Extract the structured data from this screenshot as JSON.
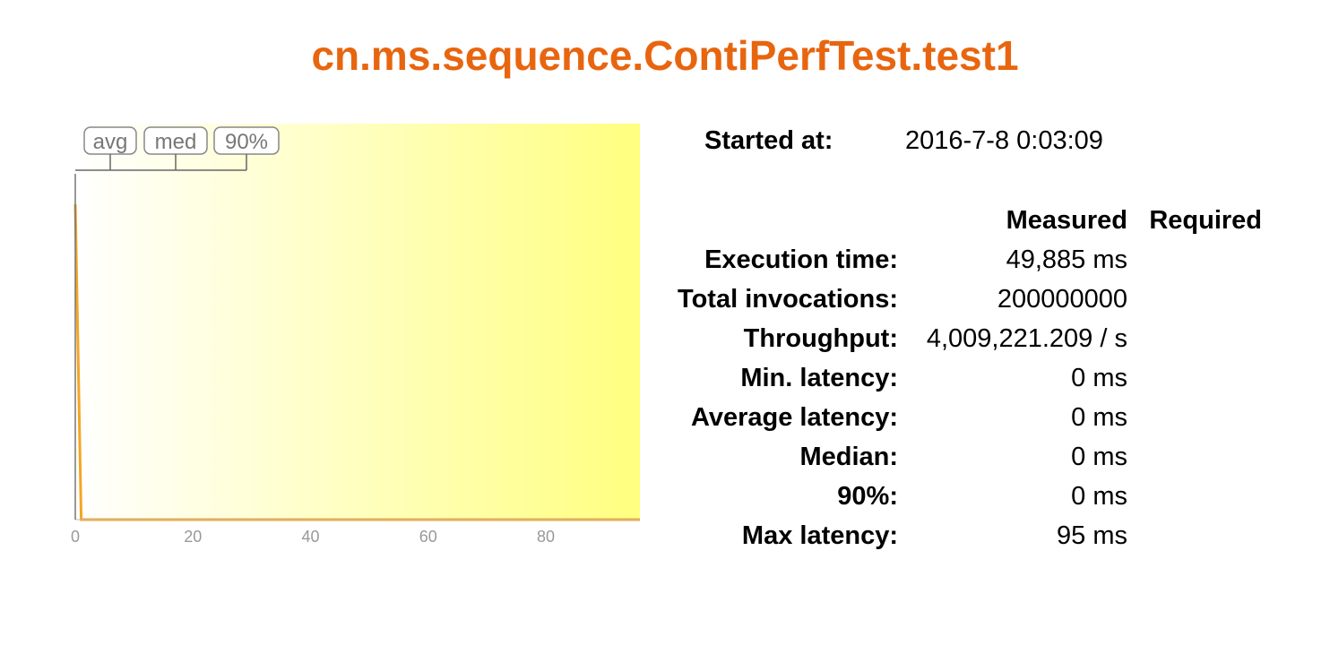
{
  "report": {
    "title": "cn.ms.sequence.ContiPerfTest.test1",
    "started_label": "Started at:",
    "started_value": "2016-7-8 0:03:09"
  },
  "table": {
    "headers": {
      "measured": "Measured",
      "required": "Required"
    },
    "rows": [
      {
        "label": "Execution time:",
        "measured": "49,885 ms",
        "required": ""
      },
      {
        "label": "Total invocations:",
        "measured": "200000000",
        "required": ""
      },
      {
        "label": "Throughput:",
        "measured": "4,009,221.209 / s",
        "required": ""
      },
      {
        "label": "Min. latency:",
        "measured": "0 ms",
        "required": ""
      },
      {
        "label": "Average latency:",
        "measured": "0 ms",
        "required": ""
      },
      {
        "label": "Median:",
        "measured": "0 ms",
        "required": ""
      },
      {
        "label": "90%:",
        "measured": "0 ms",
        "required": ""
      },
      {
        "label": "Max latency:",
        "measured": "95 ms",
        "required": ""
      }
    ]
  },
  "colors": {
    "title": "#e8650f",
    "chart_line": "#f5a623",
    "chart_gradient_start": "#ffffff",
    "chart_gradient_end": "#ffff80"
  },
  "chart_data": {
    "type": "line",
    "x_ticks": [
      "0",
      "20",
      "40",
      "60",
      "80"
    ],
    "xlim": [
      0,
      96
    ],
    "legend": [
      "avg",
      "med",
      "90%"
    ],
    "legend_markers": {
      "avg": 0,
      "med": 0,
      "90%": 0
    },
    "series": [
      {
        "x": [
          0,
          1,
          2,
          96
        ],
        "y": [
          1.0,
          0.0,
          0.0,
          0.0
        ]
      }
    ]
  }
}
